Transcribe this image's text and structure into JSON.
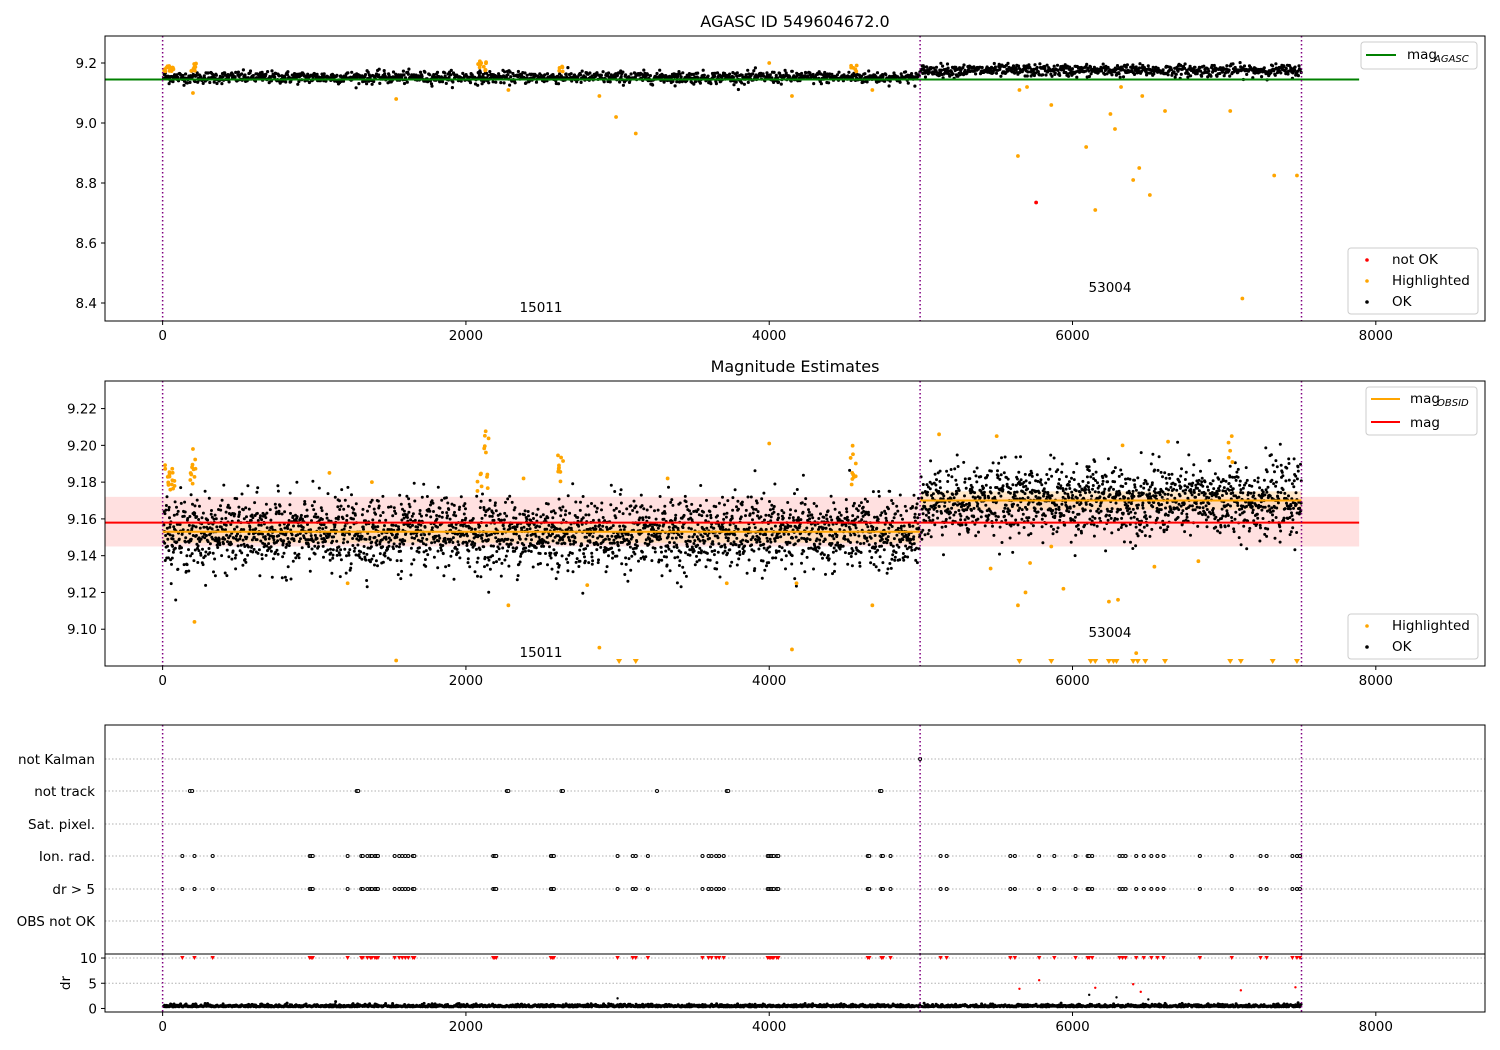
{
  "figure": {
    "width": 1500,
    "height": 1050
  },
  "colors": {
    "ok": "#000000",
    "highlighted": "#ffa500",
    "not_ok": "#ff0000",
    "agasc_line": "#008000",
    "obsid_line": "#ffa500",
    "mean_line": "#ff0000",
    "mean_band": "#ffcccc",
    "obsid_band": "#ffd7a0",
    "boundary": "#800080",
    "grid": "#b0b0b0"
  },
  "chart_data": [
    {
      "id": "mag_agasc",
      "type": "scatter",
      "title": "AGASC ID 549604672.0",
      "xlim": [
        -380,
        8720
      ],
      "ylim": [
        8.34,
        9.29
      ],
      "xticks": [
        0,
        2000,
        4000,
        6000,
        8000
      ],
      "xtick_labels": [
        "0",
        "2000",
        "4000",
        "6000",
        "8000"
      ],
      "yticks": [
        8.4,
        8.6,
        8.8,
        9.0,
        9.2
      ],
      "ytick_labels": [
        "8.4",
        "8.6",
        "8.8",
        "9.0",
        "9.2"
      ],
      "boundaries": [
        0,
        4995,
        7510
      ],
      "obsid_labels": [
        {
          "text": "15011",
          "x": 2500,
          "y": 8.36
        },
        {
          "text": "53004",
          "x": 6230,
          "y": 8.44
        }
      ],
      "segments": [
        {
          "x0": 0,
          "x1": 4995,
          "mean": 9.152,
          "spread": 0.02
        },
        {
          "x0": 4995,
          "x1": 7510,
          "mean": 9.175,
          "spread": 0.02
        }
      ],
      "reference_lines": [
        {
          "name": "mag_agasc",
          "y": 9.145,
          "x0": -380,
          "x1": 7890,
          "color": "#008000"
        }
      ],
      "highlighted_points": [
        [
          200,
          9.1
        ],
        [
          1540,
          9.08
        ],
        [
          2280,
          9.11
        ],
        [
          2880,
          9.09
        ],
        [
          2990,
          9.02
        ],
        [
          3120,
          8.965
        ],
        [
          4000,
          9.2
        ],
        [
          4150,
          9.09
        ],
        [
          4680,
          9.11
        ],
        [
          5640,
          8.89
        ],
        [
          5650,
          9.11
        ],
        [
          5700,
          9.12
        ],
        [
          5860,
          9.06
        ],
        [
          6090,
          8.92
        ],
        [
          6150,
          8.71
        ],
        [
          6250,
          9.03
        ],
        [
          6280,
          8.98
        ],
        [
          6320,
          9.12
        ],
        [
          6400,
          8.81
        ],
        [
          6440,
          8.85
        ],
        [
          6460,
          9.09
        ],
        [
          6510,
          8.76
        ],
        [
          6610,
          9.04
        ],
        [
          7040,
          9.04
        ],
        [
          7120,
          8.415
        ],
        [
          7330,
          8.825
        ],
        [
          7480,
          8.825
        ]
      ],
      "not_ok_points": [
        [
          5760,
          8.735
        ]
      ],
      "highlight_clusters": [
        {
          "x0": 10,
          "x1": 75,
          "y0": 9.17,
          "y1": 9.19,
          "n": 14
        },
        {
          "x0": 180,
          "x1": 220,
          "y0": 9.17,
          "y1": 9.2,
          "n": 8
        },
        {
          "x0": 2080,
          "x1": 2140,
          "y0": 9.17,
          "y1": 9.21,
          "n": 10
        },
        {
          "x0": 2610,
          "x1": 2640,
          "y0": 9.17,
          "y1": 9.2,
          "n": 5
        },
        {
          "x0": 4540,
          "x1": 4580,
          "y0": 9.17,
          "y1": 9.2,
          "n": 6
        }
      ],
      "legend": {
        "position": "lower right",
        "entries": [
          {
            "label": "not OK",
            "marker": "dot",
            "color": "#ff0000"
          },
          {
            "label": "Highlighted",
            "marker": "dot",
            "color": "#ffa500"
          },
          {
            "label": "OK",
            "marker": "dot",
            "color": "#000000"
          }
        ]
      },
      "legend2": {
        "position": "upper right",
        "entries": [
          {
            "label": "mag",
            "sub": "AGASC",
            "marker": "line",
            "color": "#008000"
          }
        ]
      }
    },
    {
      "id": "mag_estimates",
      "type": "scatter",
      "title": "Magnitude Estimates",
      "xlim": [
        -380,
        8720
      ],
      "ylim": [
        9.08,
        9.235
      ],
      "xticks": [
        0,
        2000,
        4000,
        6000,
        8000
      ],
      "xtick_labels": [
        "0",
        "2000",
        "4000",
        "6000",
        "8000"
      ],
      "yticks": [
        9.1,
        9.12,
        9.14,
        9.16,
        9.18,
        9.2,
        9.22
      ],
      "ytick_labels": [
        "9.10",
        "9.12",
        "9.14",
        "9.16",
        "9.18",
        "9.20",
        "9.22"
      ],
      "boundaries": [
        0,
        4995,
        7510
      ],
      "obsid_labels": [
        {
          "text": "15011",
          "x": 2500,
          "y": 9.084
        },
        {
          "text": "53004",
          "x": 6230,
          "y": 9.097
        }
      ],
      "segments": [
        {
          "x0": 0,
          "x1": 4995,
          "mean": 9.152,
          "spread": 0.012
        },
        {
          "x0": 4995,
          "x1": 7510,
          "mean": 9.17,
          "spread": 0.012
        }
      ],
      "mean_band": {
        "x0": -380,
        "x1": 7890,
        "y0": 9.145,
        "y1": 9.172
      },
      "obsid_bands": [
        {
          "x0": 0,
          "x1": 4995,
          "y0": 9.147,
          "y1": 9.158
        },
        {
          "x0": 4995,
          "x1": 7510,
          "y0": 9.165,
          "y1": 9.175
        }
      ],
      "reference_lines": [
        {
          "name": "mag_obsid_1",
          "y": 9.153,
          "x0": 0,
          "x1": 4995,
          "color": "#ffa500"
        },
        {
          "name": "mag_obsid_2",
          "y": 9.17,
          "x0": 4995,
          "x1": 7510,
          "color": "#ffa500"
        },
        {
          "name": "mag",
          "y": 9.158,
          "x0": -380,
          "x1": 7890,
          "color": "#ff0000"
        }
      ],
      "highlighted_points": [
        [
          200,
          9.198
        ],
        [
          210,
          9.104
        ],
        [
          1100,
          9.185
        ],
        [
          1220,
          9.125
        ],
        [
          1380,
          9.18
        ],
        [
          1540,
          9.083
        ],
        [
          2280,
          9.113
        ],
        [
          2380,
          9.182
        ],
        [
          2800,
          9.124
        ],
        [
          2880,
          9.09
        ],
        [
          3330,
          9.182
        ],
        [
          3720,
          9.125
        ],
        [
          4000,
          9.201
        ],
        [
          4150,
          9.089
        ],
        [
          4180,
          9.125
        ],
        [
          4680,
          9.113
        ],
        [
          5120,
          9.206
        ],
        [
          5500,
          9.205
        ],
        [
          5460,
          9.133
        ],
        [
          5640,
          9.113
        ],
        [
          5690,
          9.12
        ],
        [
          5720,
          9.136
        ],
        [
          5860,
          9.145
        ],
        [
          5940,
          9.122
        ],
        [
          6300,
          9.116
        ],
        [
          6330,
          9.2
        ],
        [
          6240,
          9.115
        ],
        [
          6420,
          9.087
        ],
        [
          6540,
          9.134
        ],
        [
          6630,
          9.202
        ],
        [
          6830,
          9.137
        ],
        [
          7050,
          9.205
        ]
      ],
      "below_range_markers": [
        3010,
        3120,
        5650,
        5860,
        6120,
        6150,
        6240,
        6270,
        6290,
        6400,
        6430,
        6480,
        6610,
        7040,
        7110,
        7320,
        7480
      ],
      "highlight_clusters": [
        {
          "x0": 10,
          "x1": 80,
          "y0": 9.175,
          "y1": 9.19,
          "n": 16
        },
        {
          "x0": 180,
          "x1": 225,
          "y0": 9.175,
          "y1": 9.195,
          "n": 10
        },
        {
          "x0": 2070,
          "x1": 2150,
          "y0": 9.175,
          "y1": 9.208,
          "n": 14
        },
        {
          "x0": 2600,
          "x1": 2650,
          "y0": 9.178,
          "y1": 9.195,
          "n": 10
        },
        {
          "x0": 4530,
          "x1": 4590,
          "y0": 9.178,
          "y1": 9.2,
          "n": 10
        },
        {
          "x0": 7020,
          "x1": 7070,
          "y0": 9.19,
          "y1": 9.203,
          "n": 4
        }
      ],
      "legend": {
        "position": "lower right",
        "entries": [
          {
            "label": "Highlighted",
            "marker": "dot",
            "color": "#ffa500"
          },
          {
            "label": "OK",
            "marker": "dot",
            "color": "#000000"
          }
        ]
      },
      "legend2": {
        "position": "upper right",
        "entries": [
          {
            "label": "mag",
            "sub": "OBSID",
            "marker": "line",
            "color": "#ffa500"
          },
          {
            "label": "mag",
            "sub": "",
            "marker": "line",
            "color": "#ff0000"
          }
        ]
      }
    },
    {
      "id": "flags",
      "type": "scatter",
      "xlim": [
        -380,
        8720
      ],
      "categories": [
        "OBS not OK",
        "dr > 5",
        "Ion. rad.",
        "Sat. pixel.",
        "not track",
        "not Kalman"
      ],
      "boundaries": [
        0,
        4995,
        7510
      ],
      "rows": {
        "not Kalman": [
          4995
        ],
        "not track": [
          180,
          195,
          1280,
          1290,
          2270,
          2280,
          2630,
          2640,
          3260,
          3720,
          3730,
          4730,
          4740
        ],
        "Sat. pixel.": [],
        "Ion. rad.": [
          130,
          210,
          330,
          970,
          980,
          990,
          1220,
          1310,
          1320,
          1350,
          1370,
          1380,
          1400,
          1410,
          1420,
          1530,
          1560,
          1580,
          1600,
          1620,
          1650,
          1660,
          2180,
          2190,
          2200,
          2560,
          2570,
          2580,
          3000,
          3100,
          3120,
          3200,
          3560,
          3600,
          3620,
          3650,
          3670,
          3700,
          3990,
          4000,
          4010,
          4020,
          4030,
          4050,
          4060,
          4650,
          4660,
          4740,
          4750,
          4800,
          5130,
          5170,
          5590,
          5620,
          5780,
          5880,
          6020,
          6100,
          6110,
          6130,
          6310,
          6330,
          6350,
          6420,
          6470,
          6520,
          6560,
          6600,
          6840,
          7050,
          7240,
          7280,
          7450,
          7480,
          7500
        ],
        "dr > 5": [
          130,
          210,
          330,
          970,
          980,
          990,
          1220,
          1310,
          1320,
          1350,
          1370,
          1380,
          1400,
          1410,
          1420,
          1530,
          1560,
          1580,
          1600,
          1620,
          1650,
          1660,
          2180,
          2190,
          2200,
          2560,
          2570,
          2580,
          3000,
          3100,
          3120,
          3200,
          3560,
          3600,
          3620,
          3650,
          3670,
          3700,
          3990,
          4000,
          4010,
          4020,
          4030,
          4050,
          4060,
          4650,
          4660,
          4740,
          4750,
          4800,
          5130,
          5170,
          5590,
          5620,
          5780,
          5880,
          6020,
          6100,
          6110,
          6130,
          6310,
          6330,
          6350,
          6420,
          6470,
          6520,
          6560,
          6600,
          6840,
          7050,
          7240,
          7280,
          7450,
          7480,
          7500
        ],
        "OBS not OK": []
      }
    },
    {
      "id": "dr",
      "type": "scatter",
      "ylabel": "dr",
      "xlim": [
        -380,
        8720
      ],
      "ylim": [
        -0.7,
        10.8
      ],
      "xticks": [
        0,
        2000,
        4000,
        6000,
        8000
      ],
      "xtick_labels": [
        "0",
        "2000",
        "4000",
        "6000",
        "8000"
      ],
      "yticks": [
        0,
        5,
        10
      ],
      "ytick_labels": [
        "0",
        "5",
        "10"
      ],
      "boundaries": [
        0,
        4995,
        7510
      ],
      "clipped_points": [
        130,
        210,
        330,
        970,
        980,
        990,
        1220,
        1310,
        1320,
        1350,
        1370,
        1380,
        1400,
        1410,
        1420,
        1530,
        1560,
        1580,
        1600,
        1620,
        1650,
        1660,
        2180,
        2190,
        2200,
        2560,
        2570,
        2580,
        3000,
        3100,
        3120,
        3200,
        3560,
        3600,
        3620,
        3650,
        3670,
        3700,
        3990,
        4000,
        4010,
        4020,
        4030,
        4050,
        4060,
        4650,
        4660,
        4740,
        4750,
        4800,
        5130,
        5170,
        5590,
        5620,
        5780,
        5880,
        6020,
        6100,
        6110,
        6130,
        6310,
        6330,
        6350,
        6420,
        6470,
        6520,
        6560,
        6600,
        6840,
        7050,
        7240,
        7280,
        7450,
        7480,
        7500
      ],
      "outlier_points": [
        [
          5650,
          3.9
        ],
        [
          5780,
          5.6
        ],
        [
          6150,
          4.1
        ],
        [
          6290,
          2.2
        ],
        [
          6400,
          4.8
        ],
        [
          6450,
          3.3
        ],
        [
          7110,
          3.6
        ],
        [
          7470,
          4.2
        ],
        [
          3000,
          2.0
        ],
        [
          6110,
          2.7
        ],
        [
          6500,
          1.8
        ]
      ]
    }
  ]
}
